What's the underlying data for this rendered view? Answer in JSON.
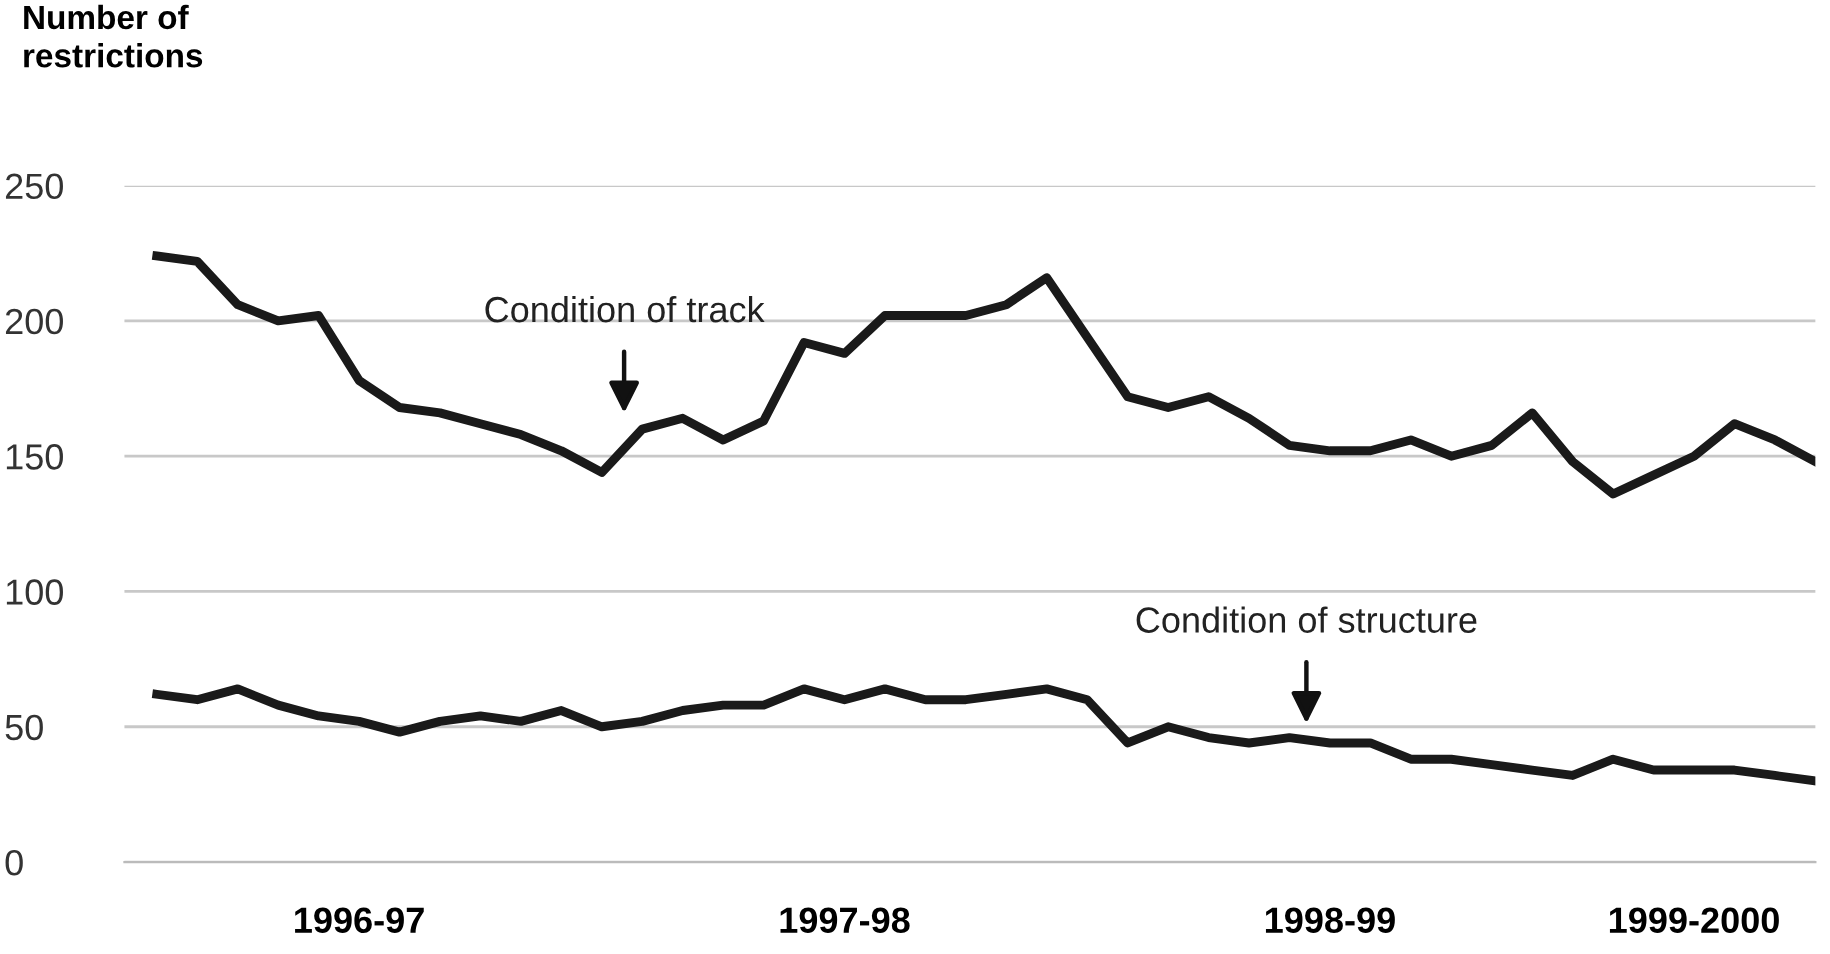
{
  "chart_data": {
    "type": "line",
    "ylabel": "Number of\nrestrictions",
    "categories": [
      null,
      null,
      null,
      null,
      null,
      "1996-97",
      null,
      null,
      null,
      null,
      null,
      null,
      null,
      null,
      null,
      null,
      null,
      "1997-98",
      null,
      null,
      null,
      null,
      null,
      null,
      null,
      null,
      null,
      null,
      null,
      "1998-99",
      null,
      null,
      null,
      null,
      null,
      null,
      null,
      null,
      "1999-2000",
      null,
      null,
      null
    ],
    "series": [
      {
        "color": "#1a1a1a",
        "values": [
          224,
          222,
          206,
          200,
          202,
          178,
          168,
          166,
          162,
          158,
          152,
          144,
          160,
          164,
          156,
          163,
          192,
          188,
          202,
          202,
          202,
          206,
          216,
          194,
          172,
          168,
          172,
          164,
          154,
          152,
          152,
          156,
          150,
          154,
          166,
          148,
          136,
          143,
          150,
          162,
          156,
          148
        ]
      },
      {
        "color": "#1a1a1a",
        "values": [
          62,
          60,
          64,
          58,
          54,
          52,
          48,
          52,
          54,
          52,
          56,
          50,
          52,
          56,
          58,
          58,
          64,
          60,
          64,
          60,
          60,
          62,
          64,
          60,
          44,
          50,
          46,
          44,
          46,
          44,
          44,
          38,
          38,
          36,
          34,
          32,
          38,
          34,
          34,
          34,
          32,
          30
        ]
      }
    ],
    "ylim": [
      0,
      250
    ],
    "yticks": [
      0,
      50,
      100,
      150,
      200,
      250
    ],
    "grid": "y",
    "marker": "none",
    "line_style": "solid",
    "annotations": [
      "Condition of track",
      "Condition of structure"
    ]
  }
}
